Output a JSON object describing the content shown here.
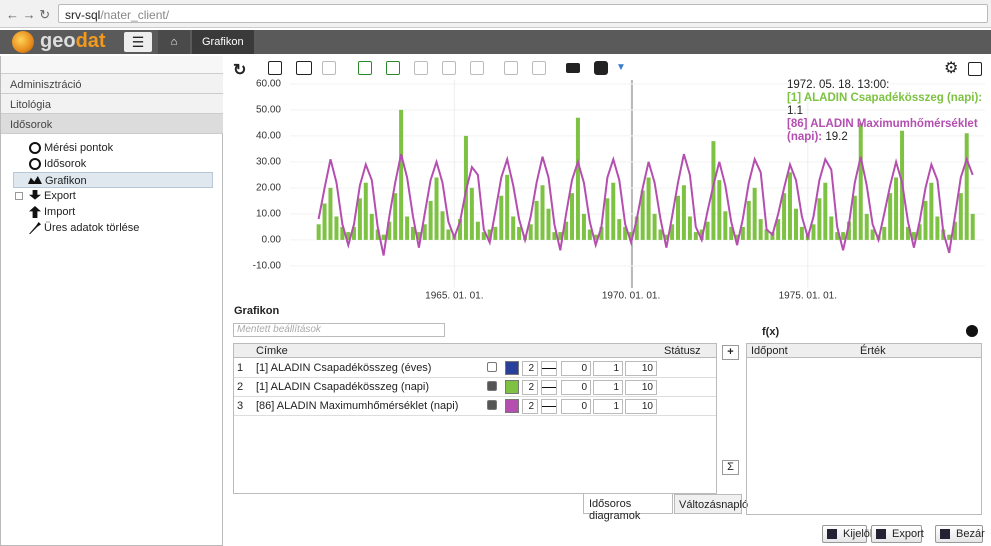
{
  "browser": {
    "host": "srv-sql",
    "path": "/nater_client/"
  },
  "header": {
    "logo_a": "geo",
    "logo_b": "dat",
    "breadcrumb": "Grafikon"
  },
  "sidebar": {
    "sections": [
      "Adminisztráció",
      "Litológia",
      "Idősorok"
    ],
    "items": [
      "Mérési pontok",
      "Idősorok",
      "Grafikon",
      "Export",
      "Import",
      "Üres adatok törlése"
    ]
  },
  "chart_data": {
    "type": "line",
    "xlim": [
      "1960-05-09",
      "1980-01-06"
    ],
    "xticks": [
      {
        "value": "1965-01-01",
        "label": "1965. 01. 01."
      },
      {
        "value": "1970-01-01",
        "label": "1970. 01. 01."
      },
      {
        "value": "1975-01-01",
        "label": "1975. 01. 01."
      }
    ],
    "ylim": [
      -18.5,
      61.5
    ],
    "yticks": [
      {
        "value": -10,
        "label": "-10.00"
      },
      {
        "value": 0,
        "label": "0.00"
      },
      {
        "value": 10,
        "label": "10.00"
      },
      {
        "value": 20,
        "label": "20.00"
      },
      {
        "value": 30,
        "label": "30.00"
      },
      {
        "value": 40,
        "label": "40.00"
      },
      {
        "value": 50,
        "label": "50.00"
      },
      {
        "value": 60,
        "label": "60.00"
      }
    ],
    "grid": true,
    "x": [
      "1961-03-01",
      "1961-05-01",
      "1961-07-01",
      "1961-09-01",
      "1961-11-01",
      "1962-01-01",
      "1962-03-01",
      "1962-05-01",
      "1962-07-01",
      "1962-09-01",
      "1962-11-01",
      "1963-01-01",
      "1963-03-01",
      "1963-05-01",
      "1963-07-01",
      "1963-09-01",
      "1963-11-01",
      "1964-01-01",
      "1964-03-01",
      "1964-05-01",
      "1964-07-01",
      "1964-09-01",
      "1964-11-01",
      "1965-01-01",
      "1965-03-01",
      "1965-05-01",
      "1965-07-01",
      "1965-09-01",
      "1965-11-01",
      "1966-01-01",
      "1966-03-01",
      "1966-05-01",
      "1966-07-01",
      "1966-09-01",
      "1966-11-01",
      "1967-01-01",
      "1967-03-01",
      "1967-05-01",
      "1967-07-01",
      "1967-09-01",
      "1967-11-01",
      "1968-01-01",
      "1968-03-01",
      "1968-05-01",
      "1968-07-01",
      "1968-09-01",
      "1968-11-01",
      "1969-01-01",
      "1969-03-01",
      "1969-05-01",
      "1969-07-01",
      "1969-09-01",
      "1969-11-01",
      "1970-01-01",
      "1970-03-01",
      "1970-05-01",
      "1970-07-01",
      "1970-09-01",
      "1970-11-01",
      "1971-01-01",
      "1971-03-01",
      "1971-05-01",
      "1971-07-01",
      "1971-09-01",
      "1971-11-01",
      "1972-01-01",
      "1972-03-01",
      "1972-05-01",
      "1972-07-01",
      "1972-09-01",
      "1972-11-01",
      "1973-01-01",
      "1973-03-01",
      "1973-05-01",
      "1973-07-01",
      "1973-09-01",
      "1973-11-01",
      "1974-01-01",
      "1974-03-01",
      "1974-05-01",
      "1974-07-01",
      "1974-09-01",
      "1974-11-01",
      "1975-01-01",
      "1975-03-01",
      "1975-05-01",
      "1975-07-01",
      "1975-09-01",
      "1975-11-01",
      "1976-01-01",
      "1976-03-01",
      "1976-05-01",
      "1976-07-01",
      "1976-09-01",
      "1976-11-01",
      "1977-01-01",
      "1977-03-01",
      "1977-05-01",
      "1977-07-01",
      "1977-09-01",
      "1977-11-01",
      "1978-01-01",
      "1978-03-01",
      "1978-05-01",
      "1978-07-01",
      "1978-09-01",
      "1978-11-01",
      "1979-01-01",
      "1979-03-01",
      "1979-05-01",
      "1979-07-01",
      "1979-09-01"
    ],
    "series": [
      {
        "name": "[1] ALADIN Csapadékösszeg (napi)",
        "color": "#7dc242",
        "kind": "bar",
        "values": [
          6,
          14,
          20,
          9,
          5,
          3,
          5,
          16,
          22,
          10,
          4,
          2,
          7,
          18,
          50,
          9,
          5,
          3,
          6,
          15,
          24,
          11,
          4,
          2,
          8,
          40,
          20,
          7,
          3,
          4,
          5,
          17,
          25,
          9,
          5,
          2,
          6,
          15,
          21,
          12,
          3,
          3,
          7,
          18,
          47,
          10,
          4,
          2,
          5,
          16,
          22,
          8,
          5,
          3,
          9,
          19,
          24,
          10,
          4,
          2,
          6,
          17,
          21,
          9,
          3,
          4,
          7,
          38,
          23,
          11,
          5,
          2,
          5,
          15,
          20,
          8,
          4,
          3,
          8,
          18,
          26,
          12,
          5,
          2,
          6,
          16,
          22,
          9,
          3,
          3,
          7,
          17,
          45,
          10,
          4,
          2,
          5,
          18,
          24,
          42,
          5,
          3,
          6,
          15,
          22,
          9,
          4,
          2,
          7,
          18,
          41,
          10
        ]
      },
      {
        "name": "[86] ALADIN Maximumhőmérséklet (napi)",
        "color": "#b44fb0",
        "kind": "line",
        "values": [
          8,
          20,
          31,
          22,
          6,
          -2,
          6,
          21,
          29,
          23,
          5,
          -6,
          9,
          22,
          33,
          24,
          9,
          -3,
          10,
          23,
          30,
          22,
          7,
          1,
          7,
          19,
          28,
          25,
          4,
          -1,
          11,
          24,
          31,
          21,
          8,
          0,
          9,
          22,
          32,
          24,
          6,
          -4,
          10,
          23,
          30,
          22,
          7,
          -2,
          5,
          24,
          31,
          23,
          6,
          -1,
          8,
          20,
          30,
          22,
          8,
          -3,
          9,
          22,
          33,
          25,
          5,
          0,
          11,
          21,
          30,
          21,
          7,
          -2,
          8,
          22,
          31,
          26,
          4,
          2,
          10,
          20,
          29,
          23,
          9,
          1,
          9,
          23,
          31,
          27,
          5,
          -4,
          6,
          22,
          32,
          21,
          6,
          0,
          10,
          21,
          30,
          22,
          7,
          -3,
          7,
          20,
          29,
          23,
          3,
          -5,
          9,
          24,
          31,
          25
        ]
      }
    ],
    "tooltip": {
      "time": "1972. 05. 18. 13:00:",
      "entries": [
        {
          "label": "[1] ALADIN Csapadékösszeg (napi):",
          "value": 1.1,
          "color": "#7dc242"
        },
        {
          "label": "[86] ALADIN Maximumhőmérséklet (napi):",
          "value": 19.2,
          "color": "#b44fb0"
        }
      ]
    }
  },
  "panel": {
    "title": "Grafikon",
    "saved_placeholder": "Mentett beállítások",
    "col_label": "Címke",
    "col_status": "Státusz",
    "rows": [
      {
        "index": 1,
        "label": "[1] ALADIN Csapadékösszeg (éves)",
        "visible": false,
        "color": "#2a3f9a",
        "width": 2,
        "offset": 0,
        "scale": 1,
        "size": 10
      },
      {
        "index": 2,
        "label": "[1] ALADIN Csapadékösszeg (napi)",
        "visible": true,
        "color": "#7dc242",
        "width": 2,
        "offset": 0,
        "scale": 1,
        "size": 10
      },
      {
        "index": 3,
        "label": "[86] ALADIN Maximumhőmérséklet (napi)",
        "visible": true,
        "color": "#b44fb0",
        "width": 2,
        "offset": 0,
        "scale": 1,
        "size": 10
      }
    ],
    "sum": "Σ",
    "tabs": [
      "Idősoros diagramok",
      "Változásnapló"
    ]
  },
  "values_panel": {
    "fx": "f(x)",
    "col_time": "Időpont",
    "col_value": "Érték"
  },
  "buttons": [
    "Kijelöl",
    "Export",
    "Bezár"
  ]
}
